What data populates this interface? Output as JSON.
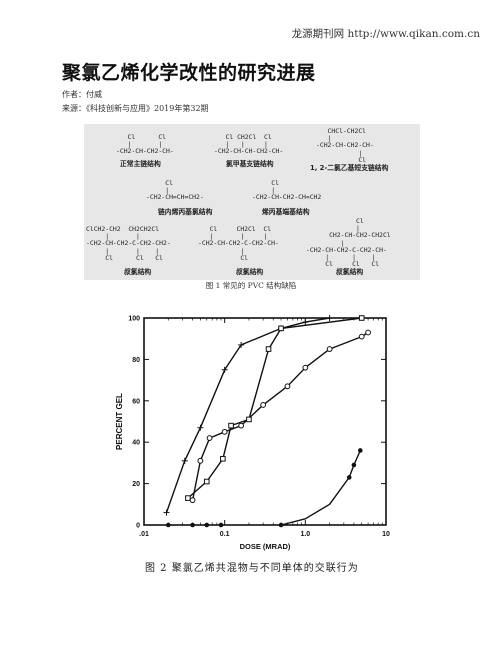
{
  "header": {
    "site": "龙源期刊网 http://www.qikan.com.cn"
  },
  "article": {
    "title": "聚氯乙烯化学改性的研究进展",
    "author_line": "作者：付威",
    "source_line": "来源：《科技创新与应用》2019年第32期"
  },
  "figure1": {
    "caption": "图 1 常见的 PVC 结构缺陷",
    "structures": [
      {
        "formula": "   Cl      Cl\n   |       |\n-CH2-CH-CH2-CH-",
        "label": "正常主链结构"
      },
      {
        "formula": "   Cl CH2Cl  Cl\n   |   |     |\n-CH2-CH-CH-CH2-CH-",
        "label": "氯甲基支链结构"
      },
      {
        "formula": "   CHCl-CH2Cl\n   |\n-CH2-CH-CH2-CH-\n           |\n           Cl",
        "label": "1, 2-二氯乙基短支链结构"
      },
      {
        "formula": "     Cl\n     |\n-CH2-CH=CH=CH2-",
        "label": "链内烯丙基氯结构"
      },
      {
        "formula": "     Cl\n     |\n-CH2-CH-CH2-CH=CH2",
        "label": "烯丙基端基结构"
      },
      {
        "formula": "ClCH2-CH2  CH2CH2Cl\n     |       |\n-CH2-CH-CH2-C-CH2-CH2-\n     |       |    |\n     Cl      Cl   Cl",
        "label": "叔氯结构"
      },
      {
        "formula": "   Cl     CH2Cl  Cl\n   |       |     |\n-CH2-CH-CH2-C-CH2-CH-\n           |\n           Cl",
        "label": "叔氯结构"
      },
      {
        "formula": "             Cl\n             |\n      CH2-CH-CH2-CH2Cl\n         |\n-CH2-CH-CH2-C-CH2-CH-\n     |      |    |\n     Cl     Cl   Cl",
        "label": "叔氯结构"
      }
    ]
  },
  "figure2": {
    "caption": "图 2 聚氯乙烯共混物与不同单体的交联行为",
    "chart_data": {
      "type": "line",
      "xlabel": "DOSE (MRAD)",
      "ylabel": "PERCENT GEL",
      "x_scale": "log",
      "xlim": [
        0.01,
        10
      ],
      "ylim": [
        0,
        100
      ],
      "x_ticks": [
        ".01",
        "0.1",
        "1.0",
        "10"
      ],
      "y_ticks": [
        "0",
        "20",
        "40",
        "60",
        "80",
        "100"
      ],
      "grid": false,
      "series": [
        {
          "marker": "plus",
          "x": [
            0.019,
            0.032,
            0.05,
            0.1,
            0.16,
            0.5,
            1.0,
            2.0
          ],
          "y": [
            6,
            31,
            47,
            75,
            87,
            95,
            98,
            100
          ]
        },
        {
          "marker": "square",
          "x": [
            0.035,
            0.06,
            0.095,
            0.12,
            0.2,
            0.35,
            0.5,
            5.0
          ],
          "y": [
            13,
            21,
            32,
            48,
            51,
            85,
            95,
            100
          ]
        },
        {
          "marker": "circle",
          "x": [
            0.04,
            0.05,
            0.065,
            0.1,
            0.16,
            0.3,
            0.6,
            1.0,
            2.0,
            5.0,
            6.0
          ],
          "y": [
            12,
            31,
            42,
            45,
            48,
            58,
            67,
            76,
            85,
            91,
            93
          ]
        },
        {
          "marker": "dot",
          "x": [
            0.02,
            0.04,
            0.06,
            0.09,
            0.5,
            1.0,
            2.0,
            3.5,
            4.0,
            4.8
          ],
          "y": [
            0,
            0,
            0,
            0,
            0,
            3,
            10,
            23,
            29,
            36
          ]
        }
      ]
    }
  }
}
